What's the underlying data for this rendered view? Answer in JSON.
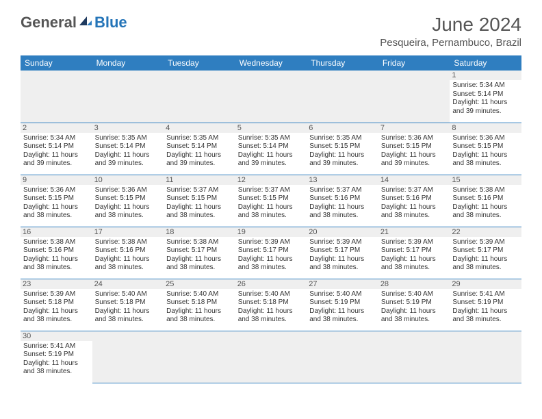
{
  "brand": {
    "general": "General",
    "blue": "Blue"
  },
  "title": "June 2024",
  "location": "Pesqueira, Pernambuco, Brazil",
  "colors": {
    "header_bg": "#2f7ec0",
    "header_text": "#ffffff",
    "brand_blue": "#2474b8",
    "text": "#333333",
    "daybar": "#efefef",
    "border": "#2f7ec0"
  },
  "weekdays": [
    "Sunday",
    "Monday",
    "Tuesday",
    "Wednesday",
    "Thursday",
    "Friday",
    "Saturday"
  ],
  "weeks": [
    [
      null,
      null,
      null,
      null,
      null,
      null,
      {
        "d": "1",
        "sr": "5:34 AM",
        "ss": "5:14 PM",
        "dl": "11 hours and 39 minutes."
      }
    ],
    [
      {
        "d": "2",
        "sr": "5:34 AM",
        "ss": "5:14 PM",
        "dl": "11 hours and 39 minutes."
      },
      {
        "d": "3",
        "sr": "5:35 AM",
        "ss": "5:14 PM",
        "dl": "11 hours and 39 minutes."
      },
      {
        "d": "4",
        "sr": "5:35 AM",
        "ss": "5:14 PM",
        "dl": "11 hours and 39 minutes."
      },
      {
        "d": "5",
        "sr": "5:35 AM",
        "ss": "5:14 PM",
        "dl": "11 hours and 39 minutes."
      },
      {
        "d": "6",
        "sr": "5:35 AM",
        "ss": "5:15 PM",
        "dl": "11 hours and 39 minutes."
      },
      {
        "d": "7",
        "sr": "5:36 AM",
        "ss": "5:15 PM",
        "dl": "11 hours and 39 minutes."
      },
      {
        "d": "8",
        "sr": "5:36 AM",
        "ss": "5:15 PM",
        "dl": "11 hours and 38 minutes."
      }
    ],
    [
      {
        "d": "9",
        "sr": "5:36 AM",
        "ss": "5:15 PM",
        "dl": "11 hours and 38 minutes."
      },
      {
        "d": "10",
        "sr": "5:36 AM",
        "ss": "5:15 PM",
        "dl": "11 hours and 38 minutes."
      },
      {
        "d": "11",
        "sr": "5:37 AM",
        "ss": "5:15 PM",
        "dl": "11 hours and 38 minutes."
      },
      {
        "d": "12",
        "sr": "5:37 AM",
        "ss": "5:15 PM",
        "dl": "11 hours and 38 minutes."
      },
      {
        "d": "13",
        "sr": "5:37 AM",
        "ss": "5:16 PM",
        "dl": "11 hours and 38 minutes."
      },
      {
        "d": "14",
        "sr": "5:37 AM",
        "ss": "5:16 PM",
        "dl": "11 hours and 38 minutes."
      },
      {
        "d": "15",
        "sr": "5:38 AM",
        "ss": "5:16 PM",
        "dl": "11 hours and 38 minutes."
      }
    ],
    [
      {
        "d": "16",
        "sr": "5:38 AM",
        "ss": "5:16 PM",
        "dl": "11 hours and 38 minutes."
      },
      {
        "d": "17",
        "sr": "5:38 AM",
        "ss": "5:16 PM",
        "dl": "11 hours and 38 minutes."
      },
      {
        "d": "18",
        "sr": "5:38 AM",
        "ss": "5:17 PM",
        "dl": "11 hours and 38 minutes."
      },
      {
        "d": "19",
        "sr": "5:39 AM",
        "ss": "5:17 PM",
        "dl": "11 hours and 38 minutes."
      },
      {
        "d": "20",
        "sr": "5:39 AM",
        "ss": "5:17 PM",
        "dl": "11 hours and 38 minutes."
      },
      {
        "d": "21",
        "sr": "5:39 AM",
        "ss": "5:17 PM",
        "dl": "11 hours and 38 minutes."
      },
      {
        "d": "22",
        "sr": "5:39 AM",
        "ss": "5:17 PM",
        "dl": "11 hours and 38 minutes."
      }
    ],
    [
      {
        "d": "23",
        "sr": "5:39 AM",
        "ss": "5:18 PM",
        "dl": "11 hours and 38 minutes."
      },
      {
        "d": "24",
        "sr": "5:40 AM",
        "ss": "5:18 PM",
        "dl": "11 hours and 38 minutes."
      },
      {
        "d": "25",
        "sr": "5:40 AM",
        "ss": "5:18 PM",
        "dl": "11 hours and 38 minutes."
      },
      {
        "d": "26",
        "sr": "5:40 AM",
        "ss": "5:18 PM",
        "dl": "11 hours and 38 minutes."
      },
      {
        "d": "27",
        "sr": "5:40 AM",
        "ss": "5:19 PM",
        "dl": "11 hours and 38 minutes."
      },
      {
        "d": "28",
        "sr": "5:40 AM",
        "ss": "5:19 PM",
        "dl": "11 hours and 38 minutes."
      },
      {
        "d": "29",
        "sr": "5:41 AM",
        "ss": "5:19 PM",
        "dl": "11 hours and 38 minutes."
      }
    ],
    [
      {
        "d": "30",
        "sr": "5:41 AM",
        "ss": "5:19 PM",
        "dl": "11 hours and 38 minutes."
      },
      null,
      null,
      null,
      null,
      null,
      null
    ]
  ],
  "labels": {
    "sunrise": "Sunrise:",
    "sunset": "Sunset:",
    "daylight": "Daylight:"
  }
}
